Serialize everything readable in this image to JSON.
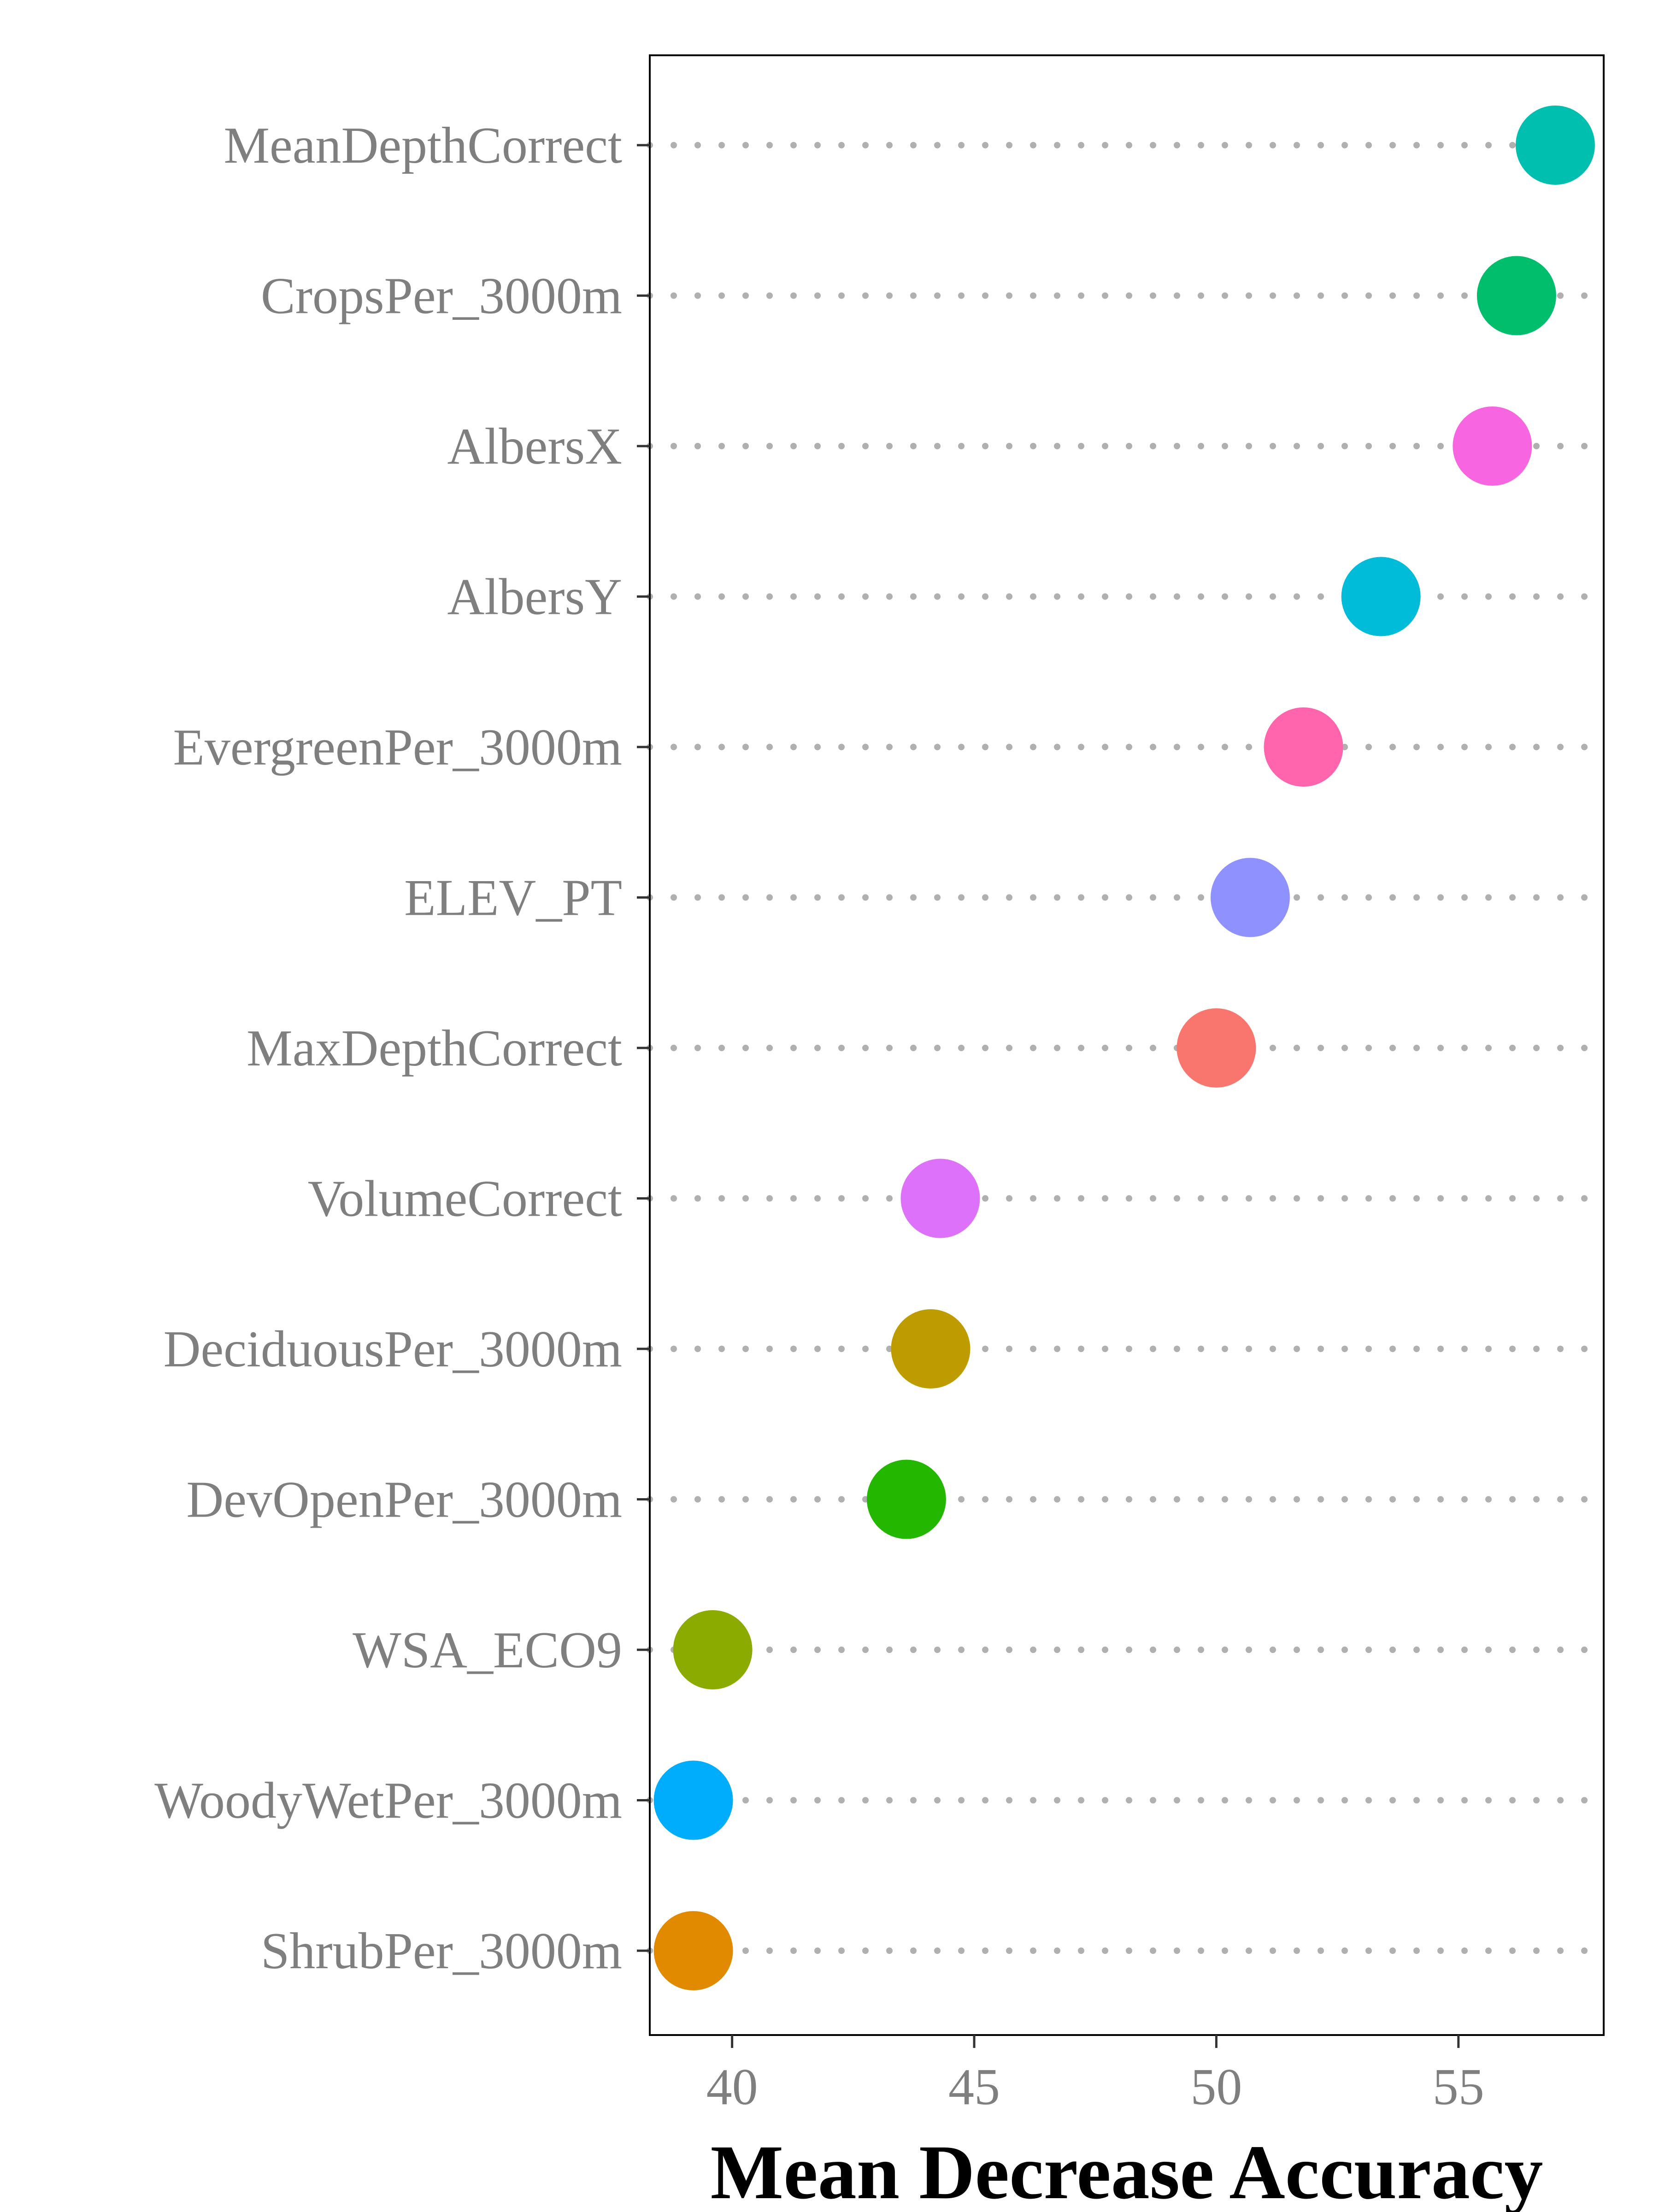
{
  "chart_data": {
    "type": "scatter",
    "title": "",
    "xlabel": "Mean Decrease Accuracy",
    "ylabel": "",
    "xlim": [
      38.3,
      58.0
    ],
    "x_ticks": [
      "40",
      "45",
      "50",
      "55"
    ],
    "grid": "dotted horizontal guide lines",
    "legend": "none",
    "categories": [
      "MeanDepthCorrect",
      "CropsPer_3000m",
      "AlbersX",
      "AlbersY",
      "EvergreenPer_3000m",
      "ELEV_PT",
      "MaxDepthCorrect",
      "VolumeCorrect",
      "DeciduousPer_3000m",
      "DevOpenPer_3000m",
      "WSA_ECO9",
      "WoodyWetPer_3000m",
      "ShrubPer_3000m"
    ],
    "values": [
      57.0,
      56.2,
      55.7,
      53.4,
      51.8,
      50.7,
      50.0,
      44.3,
      44.1,
      43.6,
      39.6,
      39.2,
      39.2
    ],
    "colors": [
      "#00BFAE",
      "#00BE6C",
      "#F766E0",
      "#00BCD8",
      "#FF65AC",
      "#8F91FF",
      "#F8766D",
      "#DE71FA",
      "#BE9C00",
      "#24B700",
      "#8BAB00",
      "#00ACFC",
      "#E18A00"
    ]
  }
}
